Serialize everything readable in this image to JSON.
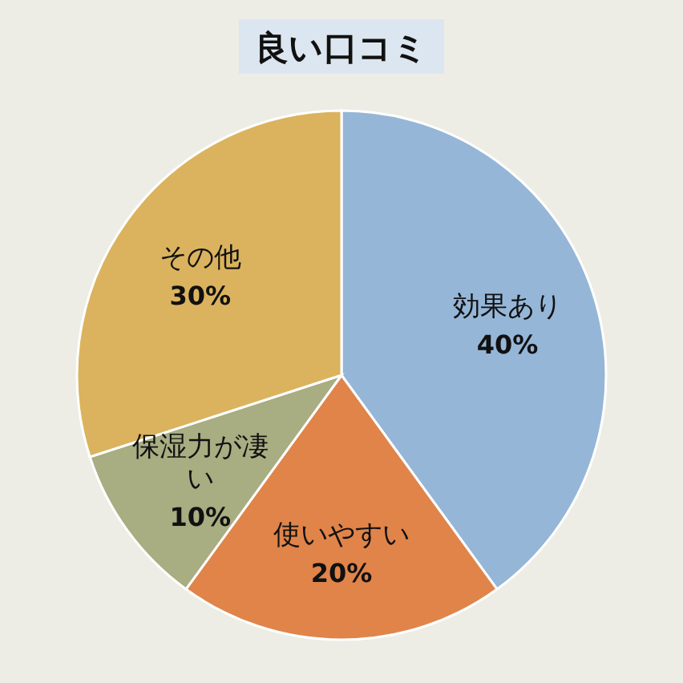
{
  "chart_data": {
    "type": "pie",
    "title": "良い口コミ",
    "categories": [
      "効果あり",
      "使いやすい",
      "保湿力が凄い",
      "その他"
    ],
    "values": [
      40,
      20,
      10,
      30
    ],
    "value_labels": [
      "40%",
      "20%",
      "10%",
      "30%"
    ],
    "colors": [
      "#95b6d7",
      "#e0844a",
      "#a8ad82",
      "#dbb35e"
    ],
    "legend": false
  }
}
